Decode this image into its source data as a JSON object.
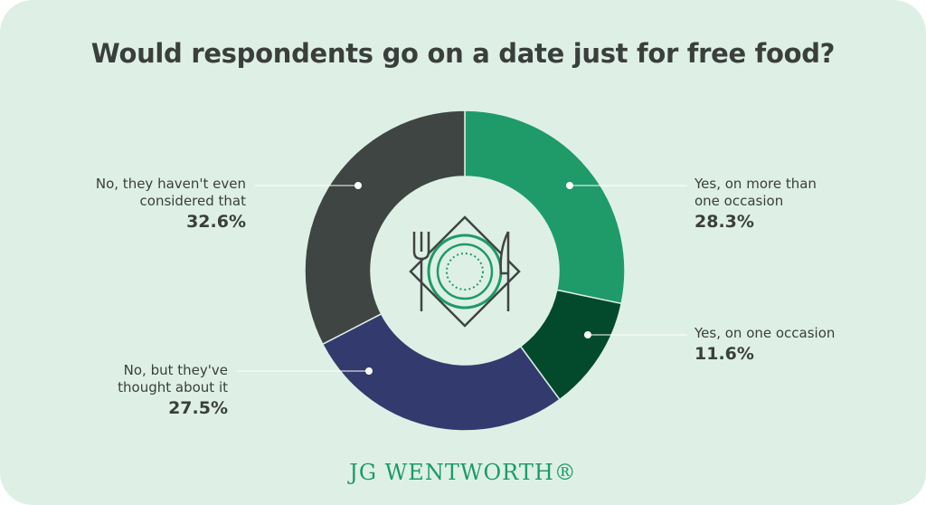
{
  "chart_data": {
    "type": "donut",
    "title": "Would respondents go on a date just for free food?",
    "categories": [
      "Yes, on more than one occasion",
      "Yes, on one occasion",
      "No, but they've thought about it",
      "No, they haven't even considered that"
    ],
    "values": [
      28.3,
      11.6,
      27.5,
      32.6
    ],
    "value_labels": [
      "28.3%",
      "11.6%",
      "27.5%",
      "32.6%"
    ],
    "colors": [
      "#1f9a69",
      "#024a2b",
      "#333a6e",
      "#3f4542"
    ]
  },
  "brand": "JG WENTWORTH®"
}
